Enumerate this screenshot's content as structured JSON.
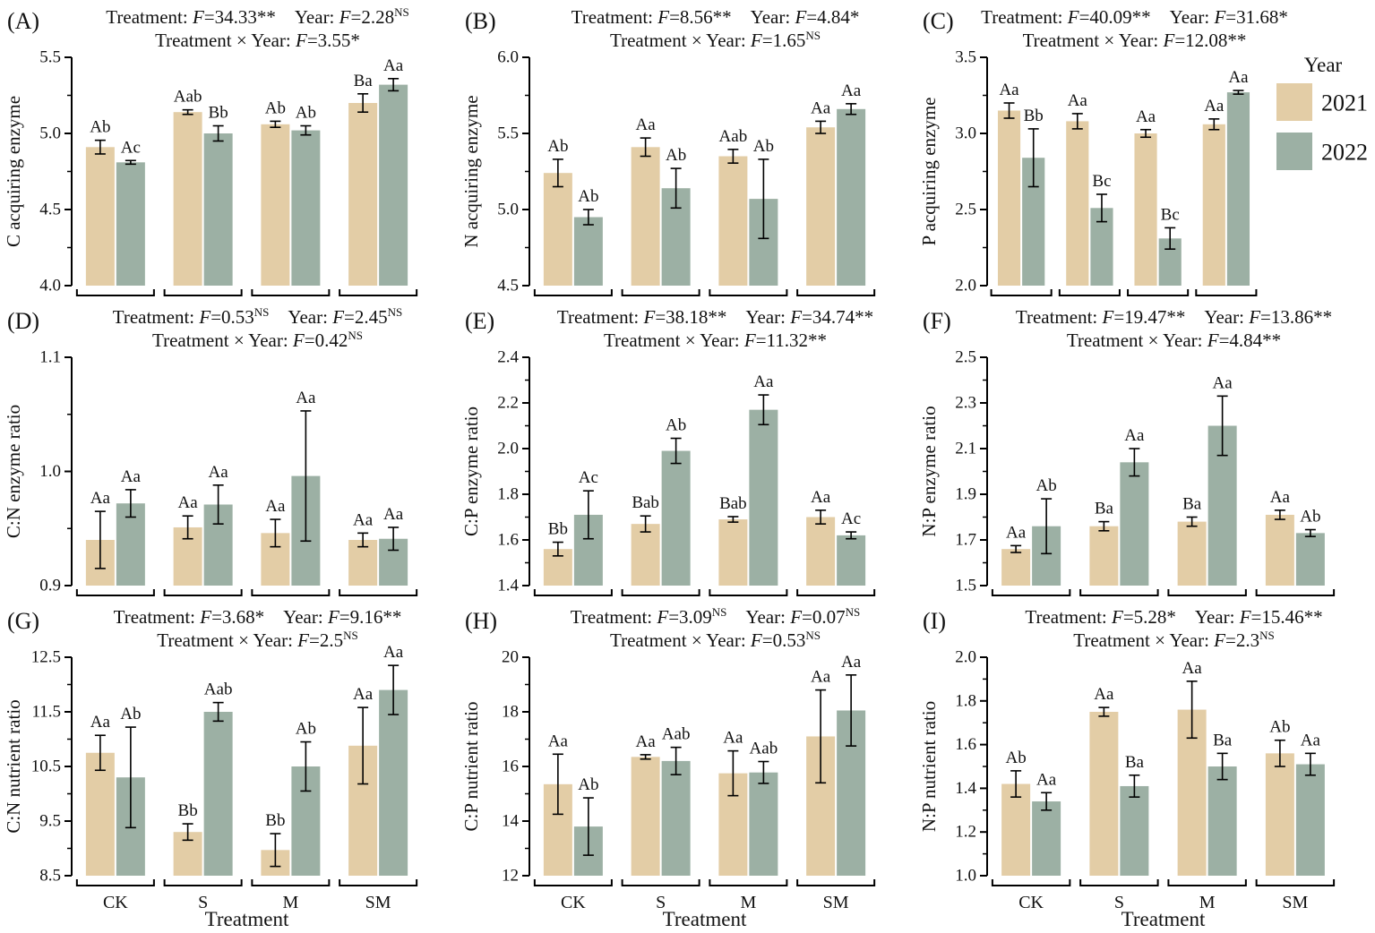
{
  "figure": {
    "x_axis_title": "Treatment",
    "categories": [
      "CK",
      "S",
      "M",
      "SM"
    ],
    "stats_labels": {
      "treatment_label": "Treatment: ",
      "year_label": "Year: ",
      "interaction_label": "Treatment × Year: ",
      "f_symbol": "F"
    },
    "legend": {
      "title": "Year",
      "items": [
        {
          "label": "2021",
          "color": "#e3cda6"
        },
        {
          "label": "2022",
          "color": "#9cb0a4"
        }
      ]
    },
    "colors": {
      "bar_2021": "#e3cda6",
      "bar_2022": "#9cb0a4",
      "axis": "#000000",
      "text": "#111111"
    }
  },
  "chart_data": [
    {
      "id": "A",
      "label": "(A)",
      "type": "bar",
      "ylabel": "C acquiring enzyme",
      "ylim": [
        4.0,
        5.5
      ],
      "yticks": [
        "4.0",
        "4.5",
        "5.0",
        "5.5"
      ],
      "stats": {
        "treatment": {
          "F": "34.33",
          "sig": "**"
        },
        "year": {
          "F": "2.28",
          "sig": "NS"
        },
        "interaction": {
          "F": "3.55",
          "sig": "*"
        }
      },
      "categories": [
        "CK",
        "S",
        "M",
        "SM"
      ],
      "series": [
        {
          "name": "2021",
          "values": [
            4.91,
            5.14,
            5.06,
            5.2
          ],
          "errors": [
            0.045,
            0.015,
            0.02,
            0.06
          ],
          "letters": [
            "Ab",
            "Aab",
            "Ab",
            "Ba"
          ]
        },
        {
          "name": "2022",
          "values": [
            4.81,
            5.0,
            5.02,
            5.32
          ],
          "errors": [
            0.012,
            0.05,
            0.03,
            0.04
          ],
          "letters": [
            "Ac",
            "Bb",
            "Ab",
            "Aa"
          ]
        }
      ],
      "show_x_labels": false,
      "legend": false
    },
    {
      "id": "B",
      "label": "(B)",
      "type": "bar",
      "ylabel": "N acquiring enzyme",
      "ylim": [
        4.5,
        6.0
      ],
      "yticks": [
        "4.5",
        "5.0",
        "5.5",
        "6.0"
      ],
      "stats": {
        "treatment": {
          "F": "8.56",
          "sig": "**"
        },
        "year": {
          "F": "4.84",
          "sig": "*"
        },
        "interaction": {
          "F": "1.65",
          "sig": "NS"
        }
      },
      "categories": [
        "CK",
        "S",
        "M",
        "SM"
      ],
      "series": [
        {
          "name": "2021",
          "values": [
            5.24,
            5.41,
            5.35,
            5.54
          ],
          "errors": [
            0.09,
            0.06,
            0.045,
            0.04
          ],
          "letters": [
            "Ab",
            "Aa",
            "Aab",
            "Aa"
          ]
        },
        {
          "name": "2022",
          "values": [
            4.95,
            5.14,
            5.07,
            5.66
          ],
          "errors": [
            0.05,
            0.13,
            0.26,
            0.035
          ],
          "letters": [
            "Ab",
            "Ab",
            "Ab",
            "Aa"
          ]
        }
      ],
      "show_x_labels": false,
      "legend": false
    },
    {
      "id": "C",
      "label": "(C)",
      "type": "bar",
      "ylabel": "P acquiring enzyme",
      "ylim": [
        2.0,
        3.5
      ],
      "yticks": [
        "2.0",
        "2.5",
        "3.0",
        "3.5"
      ],
      "stats": {
        "treatment": {
          "F": "40.09",
          "sig": "**"
        },
        "year": {
          "F": "31.68",
          "sig": "*"
        },
        "interaction": {
          "F": "12.08",
          "sig": "**"
        }
      },
      "categories": [
        "CK",
        "S",
        "M",
        "SM"
      ],
      "series": [
        {
          "name": "2021",
          "values": [
            3.15,
            3.08,
            3.0,
            3.06
          ],
          "errors": [
            0.05,
            0.05,
            0.025,
            0.035
          ],
          "letters": [
            "Aa",
            "Aa",
            "Aa",
            "Aa"
          ]
        },
        {
          "name": "2022",
          "values": [
            2.84,
            2.51,
            2.31,
            3.27
          ],
          "errors": [
            0.19,
            0.09,
            0.07,
            0.012
          ],
          "letters": [
            "Bb",
            "Bc",
            "Bc",
            "Aa"
          ]
        }
      ],
      "show_x_labels": false,
      "legend": true
    },
    {
      "id": "D",
      "label": "(D)",
      "type": "bar",
      "ylabel": "C:N enzyme ratio",
      "ylim": [
        0.9,
        1.1
      ],
      "yticks": [
        "0.9",
        "1.0",
        "1.1"
      ],
      "stats": {
        "treatment": {
          "F": "0.53",
          "sig": "NS"
        },
        "year": {
          "F": "2.45",
          "sig": "NS"
        },
        "interaction": {
          "F": "0.42",
          "sig": "NS"
        }
      },
      "categories": [
        "CK",
        "S",
        "M",
        "SM"
      ],
      "series": [
        {
          "name": "2021",
          "values": [
            0.94,
            0.951,
            0.946,
            0.94
          ],
          "errors": [
            0.025,
            0.01,
            0.012,
            0.006
          ],
          "letters": [
            "Aa",
            "Aa",
            "Aa",
            "Aa"
          ]
        },
        {
          "name": "2022",
          "values": [
            0.972,
            0.971,
            0.996,
            0.941
          ],
          "errors": [
            0.012,
            0.017,
            0.057,
            0.01
          ],
          "letters": [
            "Aa",
            "Aa",
            "Aa",
            "Aa"
          ]
        }
      ],
      "show_x_labels": false,
      "legend": false
    },
    {
      "id": "E",
      "label": "(E)",
      "type": "bar",
      "ylabel": "C:P enzyme ratio",
      "ylim": [
        1.4,
        2.4
      ],
      "yticks": [
        "1.4",
        "1.6",
        "1.8",
        "2.0",
        "2.2",
        "2.4"
      ],
      "stats": {
        "treatment": {
          "F": "38.18",
          "sig": "**"
        },
        "year": {
          "F": "34.74",
          "sig": "**"
        },
        "interaction": {
          "F": "11.32",
          "sig": "**"
        }
      },
      "categories": [
        "CK",
        "S",
        "M",
        "SM"
      ],
      "series": [
        {
          "name": "2021",
          "values": [
            1.56,
            1.67,
            1.69,
            1.7
          ],
          "errors": [
            0.03,
            0.035,
            0.012,
            0.03
          ],
          "letters": [
            "Bb",
            "Bab",
            "Bab",
            "Aa"
          ]
        },
        {
          "name": "2022",
          "values": [
            1.71,
            1.99,
            2.17,
            1.62
          ],
          "errors": [
            0.105,
            0.055,
            0.065,
            0.015
          ],
          "letters": [
            "Ac",
            "Ab",
            "Aa",
            "Ac"
          ]
        }
      ],
      "show_x_labels": false,
      "legend": false
    },
    {
      "id": "F",
      "label": "(F)",
      "type": "bar",
      "ylabel": "N:P enzyme ratio",
      "ylim": [
        1.5,
        2.5
      ],
      "yticks": [
        "1.5",
        "1.7",
        "1.9",
        "2.1",
        "2.3",
        "2.5"
      ],
      "stats": {
        "treatment": {
          "F": "19.47",
          "sig": "**"
        },
        "year": {
          "F": "13.86",
          "sig": "**"
        },
        "interaction": {
          "F": "4.84",
          "sig": "**"
        }
      },
      "categories": [
        "CK",
        "S",
        "M",
        "SM"
      ],
      "series": [
        {
          "name": "2021",
          "values": [
            1.66,
            1.76,
            1.78,
            1.81
          ],
          "errors": [
            0.015,
            0.02,
            0.02,
            0.02
          ],
          "letters": [
            "Aa",
            "Ba",
            "Ba",
            "Aa"
          ]
        },
        {
          "name": "2022",
          "values": [
            1.76,
            2.04,
            2.2,
            1.73
          ],
          "errors": [
            0.12,
            0.06,
            0.13,
            0.015
          ],
          "letters": [
            "Ab",
            "Aa",
            "Aa",
            "Ab"
          ]
        }
      ],
      "show_x_labels": false,
      "legend": false
    },
    {
      "id": "G",
      "label": "(G)",
      "type": "bar",
      "ylabel": "C:N nutrient ratio",
      "ylim": [
        8.5,
        12.5
      ],
      "yticks": [
        "8.5",
        "9.5",
        "10.5",
        "11.5",
        "12.5"
      ],
      "stats": {
        "treatment": {
          "F": "3.68",
          "sig": "*"
        },
        "year": {
          "F": "9.16",
          "sig": "**"
        },
        "interaction": {
          "F": "2.5",
          "sig": "NS"
        }
      },
      "categories": [
        "CK",
        "S",
        "M",
        "SM"
      ],
      "series": [
        {
          "name": "2021",
          "values": [
            10.75,
            9.3,
            8.97,
            10.88
          ],
          "errors": [
            0.32,
            0.15,
            0.3,
            0.7
          ],
          "letters": [
            "Aa",
            "Bb",
            "Bb",
            "Aa"
          ]
        },
        {
          "name": "2022",
          "values": [
            10.3,
            11.5,
            10.5,
            11.9
          ],
          "errors": [
            0.92,
            0.17,
            0.45,
            0.45
          ],
          "letters": [
            "Ab",
            "Aab",
            "Ab",
            "Aa"
          ]
        }
      ],
      "show_x_labels": true,
      "legend": false
    },
    {
      "id": "H",
      "label": "(H)",
      "type": "bar",
      "ylabel": "C:P nutrient ratio",
      "ylim": [
        12,
        20
      ],
      "yticks": [
        "12",
        "14",
        "16",
        "18",
        "20"
      ],
      "stats": {
        "treatment": {
          "F": "3.09",
          "sig": "NS"
        },
        "year": {
          "F": "0.07",
          "sig": "NS"
        },
        "interaction": {
          "F": "0.53",
          "sig": "NS"
        }
      },
      "categories": [
        "CK",
        "S",
        "M",
        "SM"
      ],
      "series": [
        {
          "name": "2021",
          "values": [
            15.35,
            16.35,
            15.75,
            17.1
          ],
          "errors": [
            1.1,
            0.08,
            0.82,
            1.7
          ],
          "letters": [
            "Aa",
            "Aa",
            "Aa",
            "Aa"
          ]
        },
        {
          "name": "2022",
          "values": [
            13.8,
            16.2,
            15.78,
            18.05
          ],
          "errors": [
            1.05,
            0.5,
            0.4,
            1.3
          ],
          "letters": [
            "Ab",
            "Aab",
            "Aab",
            "Aa"
          ]
        }
      ],
      "show_x_labels": true,
      "legend": false
    },
    {
      "id": "I",
      "label": "(I)",
      "type": "bar",
      "ylabel": "N:P nutrient ratio",
      "ylim": [
        1.0,
        2.0
      ],
      "yticks": [
        "1.0",
        "1.2",
        "1.4",
        "1.6",
        "1.8",
        "2.0"
      ],
      "stats": {
        "treatment": {
          "F": "5.28",
          "sig": "*"
        },
        "year": {
          "F": "15.46",
          "sig": "**"
        },
        "interaction": {
          "F": "2.3",
          "sig": "NS"
        }
      },
      "categories": [
        "CK",
        "S",
        "M",
        "SM"
      ],
      "series": [
        {
          "name": "2021",
          "values": [
            1.42,
            1.75,
            1.76,
            1.56
          ],
          "errors": [
            0.06,
            0.02,
            0.13,
            0.06
          ],
          "letters": [
            "Ab",
            "Aa",
            "Aa",
            "Ab"
          ]
        },
        {
          "name": "2022",
          "values": [
            1.34,
            1.41,
            1.5,
            1.51
          ],
          "errors": [
            0.04,
            0.05,
            0.06,
            0.05
          ],
          "letters": [
            "Aa",
            "Ba",
            "Ba",
            "Aa"
          ]
        }
      ],
      "show_x_labels": true,
      "legend": false
    }
  ]
}
